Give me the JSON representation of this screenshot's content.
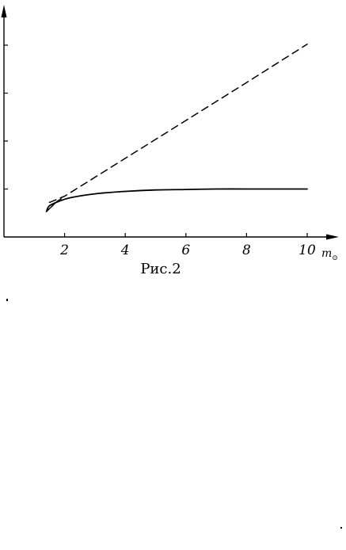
{
  "chart_data": {
    "type": "line",
    "title": "",
    "xlabel": "m",
    "xlabel_subscript": "⊙",
    "ylabel": "",
    "xlim": [
      0,
      11.5
    ],
    "ylim": [
      0,
      5
    ],
    "x_ticks": [
      2,
      4,
      6,
      8,
      10
    ],
    "x_tick_labels": [
      "2",
      "4",
      "6",
      "8",
      "10"
    ],
    "y_ticks": [
      1,
      2,
      3,
      4
    ],
    "grid": false,
    "caption": "Рис.2",
    "series": [
      {
        "style": "dashed",
        "x": [
          1.5,
          2,
          4,
          6,
          8,
          10
        ],
        "y": [
          0.72,
          0.85,
          1.64,
          2.43,
          3.22,
          4.02
        ]
      },
      {
        "style": "solid",
        "x": [
          1.4,
          1.5,
          1.8,
          2.2,
          3,
          4,
          5,
          6,
          7,
          8,
          9,
          10
        ],
        "y": [
          0.53,
          0.65,
          0.74,
          0.82,
          0.9,
          0.95,
          0.98,
          0.99,
          1.0,
          1.0,
          1.0,
          1.0
        ],
        "hook": {
          "x": [
            1.4,
            1.55,
            1.75,
            1.9
          ],
          "y": [
            0.53,
            0.62,
            0.74,
            0.8
          ]
        }
      }
    ]
  }
}
